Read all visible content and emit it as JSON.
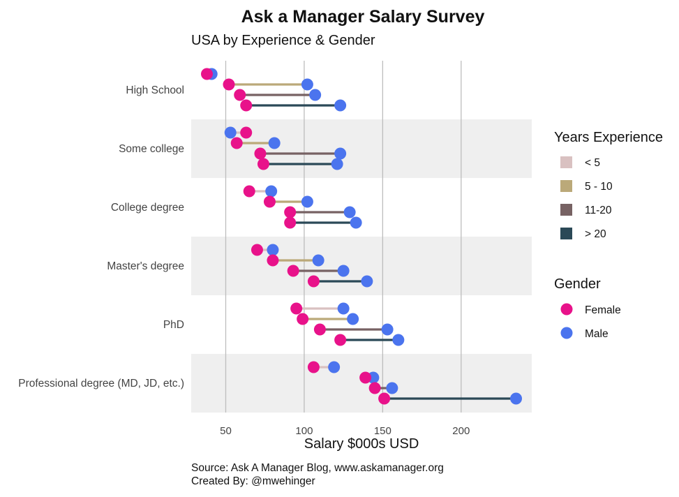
{
  "title": "Ask a Manager Salary Survey",
  "subtitle": "USA by Experience & Gender",
  "caption_line1": "Source: Ask A Manager Blog, www.askamanager.org",
  "caption_line2": "Created By: @mwehinger",
  "chart_data": {
    "type": "dumbbell",
    "xlabel": "Salary $000s USD",
    "xlim": [
      28,
      245
    ],
    "x_ticks": [
      50,
      100,
      150,
      200
    ],
    "grid": "vertical major lines",
    "categories": [
      "High School",
      "Some college",
      "College degree",
      "Master's degree",
      "PhD",
      "Professional degree (MD, JD, etc.)"
    ],
    "experience_levels": [
      {
        "label": "< 5",
        "color": "#D9C1C1"
      },
      {
        "label": "5 - 10",
        "color": "#BBA979"
      },
      {
        "label": "11-20",
        "color": "#776263"
      },
      {
        "label": "> 20",
        "color": "#2B4957"
      }
    ],
    "gender": [
      {
        "label": "Female",
        "color": "#E8128A"
      },
      {
        "label": "Male",
        "color": "#4B74EE"
      }
    ],
    "legend_experience_title": "Years Experience",
    "legend_gender_title": "Gender",
    "legend_position": "right",
    "data": [
      {
        "category": "High School",
        "female": [
          38,
          52,
          59,
          63
        ],
        "male": [
          41,
          102,
          107,
          123
        ]
      },
      {
        "category": "Some college",
        "female": [
          63,
          57,
          72,
          74
        ],
        "male": [
          53,
          81,
          123,
          121
        ]
      },
      {
        "category": "College degree",
        "female": [
          65,
          78,
          91,
          91
        ],
        "male": [
          79,
          102,
          129,
          133
        ]
      },
      {
        "category": "Master's degree",
        "female": [
          70,
          80,
          93,
          106
        ],
        "male": [
          80,
          109,
          125,
          140
        ]
      },
      {
        "category": "PhD",
        "female": [
          95,
          99,
          110,
          123
        ],
        "male": [
          125,
          131,
          153,
          160
        ]
      },
      {
        "category": "Professional degree (MD, JD, etc.)",
        "female": [
          106,
          139,
          145,
          151
        ],
        "male": [
          119,
          144,
          156,
          235
        ]
      }
    ]
  }
}
